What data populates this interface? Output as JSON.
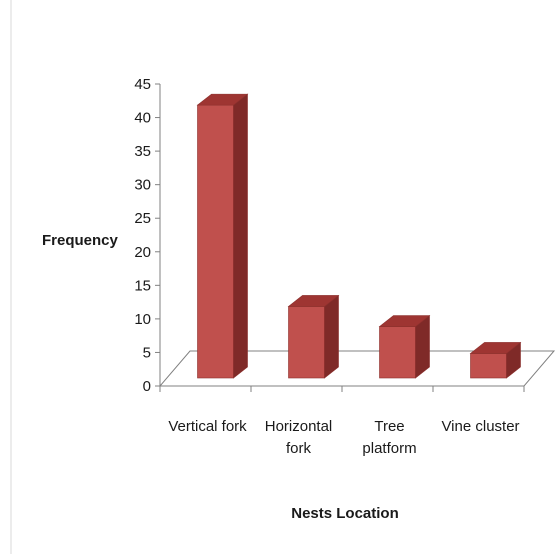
{
  "chart_data": {
    "type": "bar",
    "style": "3d-column",
    "categories": [
      "Vertical fork",
      "Horizontal fork",
      "Tree platform",
      "Vine cluster"
    ],
    "category_lines": [
      [
        "Vertical fork"
      ],
      [
        "Horizontal",
        "fork"
      ],
      [
        "Tree",
        "platform"
      ],
      [
        "Vine cluster"
      ]
    ],
    "values": [
      42,
      12,
      9,
      5
    ],
    "title": "",
    "xlabel": "Nests Location",
    "ylabel": "Frequency",
    "ylim": [
      0,
      45
    ],
    "yticks": [
      "0",
      "5",
      "10",
      "15",
      "20",
      "25",
      "30",
      "35",
      "40",
      "45"
    ],
    "grid": false,
    "legend": "none",
    "colors": {
      "bar_front": "#c0504d",
      "bar_side": "#7f2a28",
      "bar_top": "#9e3532",
      "bar_edge": "#8c302d",
      "floor": "#ffffff",
      "axis": "#808080",
      "frame": "#d9d9d9"
    }
  }
}
